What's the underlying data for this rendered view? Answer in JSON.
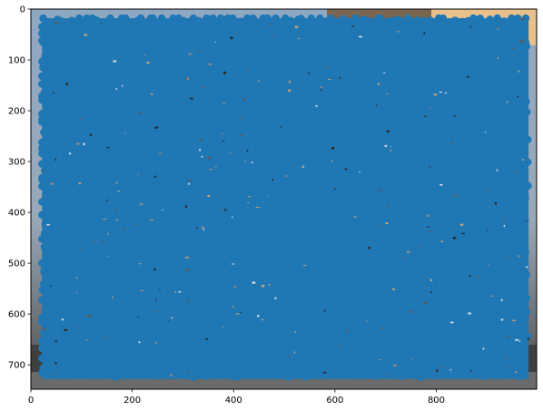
{
  "chart_data": {
    "type": "scatter",
    "title": "",
    "xlabel": "",
    "ylabel": "",
    "xlim": [
      0,
      998
    ],
    "ylim": [
      748,
      0
    ],
    "y_inverted": true,
    "grid": false,
    "legend": "none",
    "background": "photograph (building facade and sky) shown as image behind the points",
    "marker": "circle",
    "series_color": "#1f77b4",
    "points_cover_region": {
      "x": [
        22,
        982
      ],
      "y": [
        18,
        728
      ]
    },
    "x_ticks": [
      0,
      200,
      400,
      600,
      800
    ],
    "x_tick_labels": [
      "0",
      "200",
      "400",
      "600",
      "800"
    ],
    "y_ticks": [
      0,
      100,
      200,
      300,
      400,
      500,
      600,
      700
    ],
    "y_tick_labels": [
      "0",
      "100",
      "200",
      "300",
      "400",
      "500",
      "600",
      "700"
    ]
  }
}
